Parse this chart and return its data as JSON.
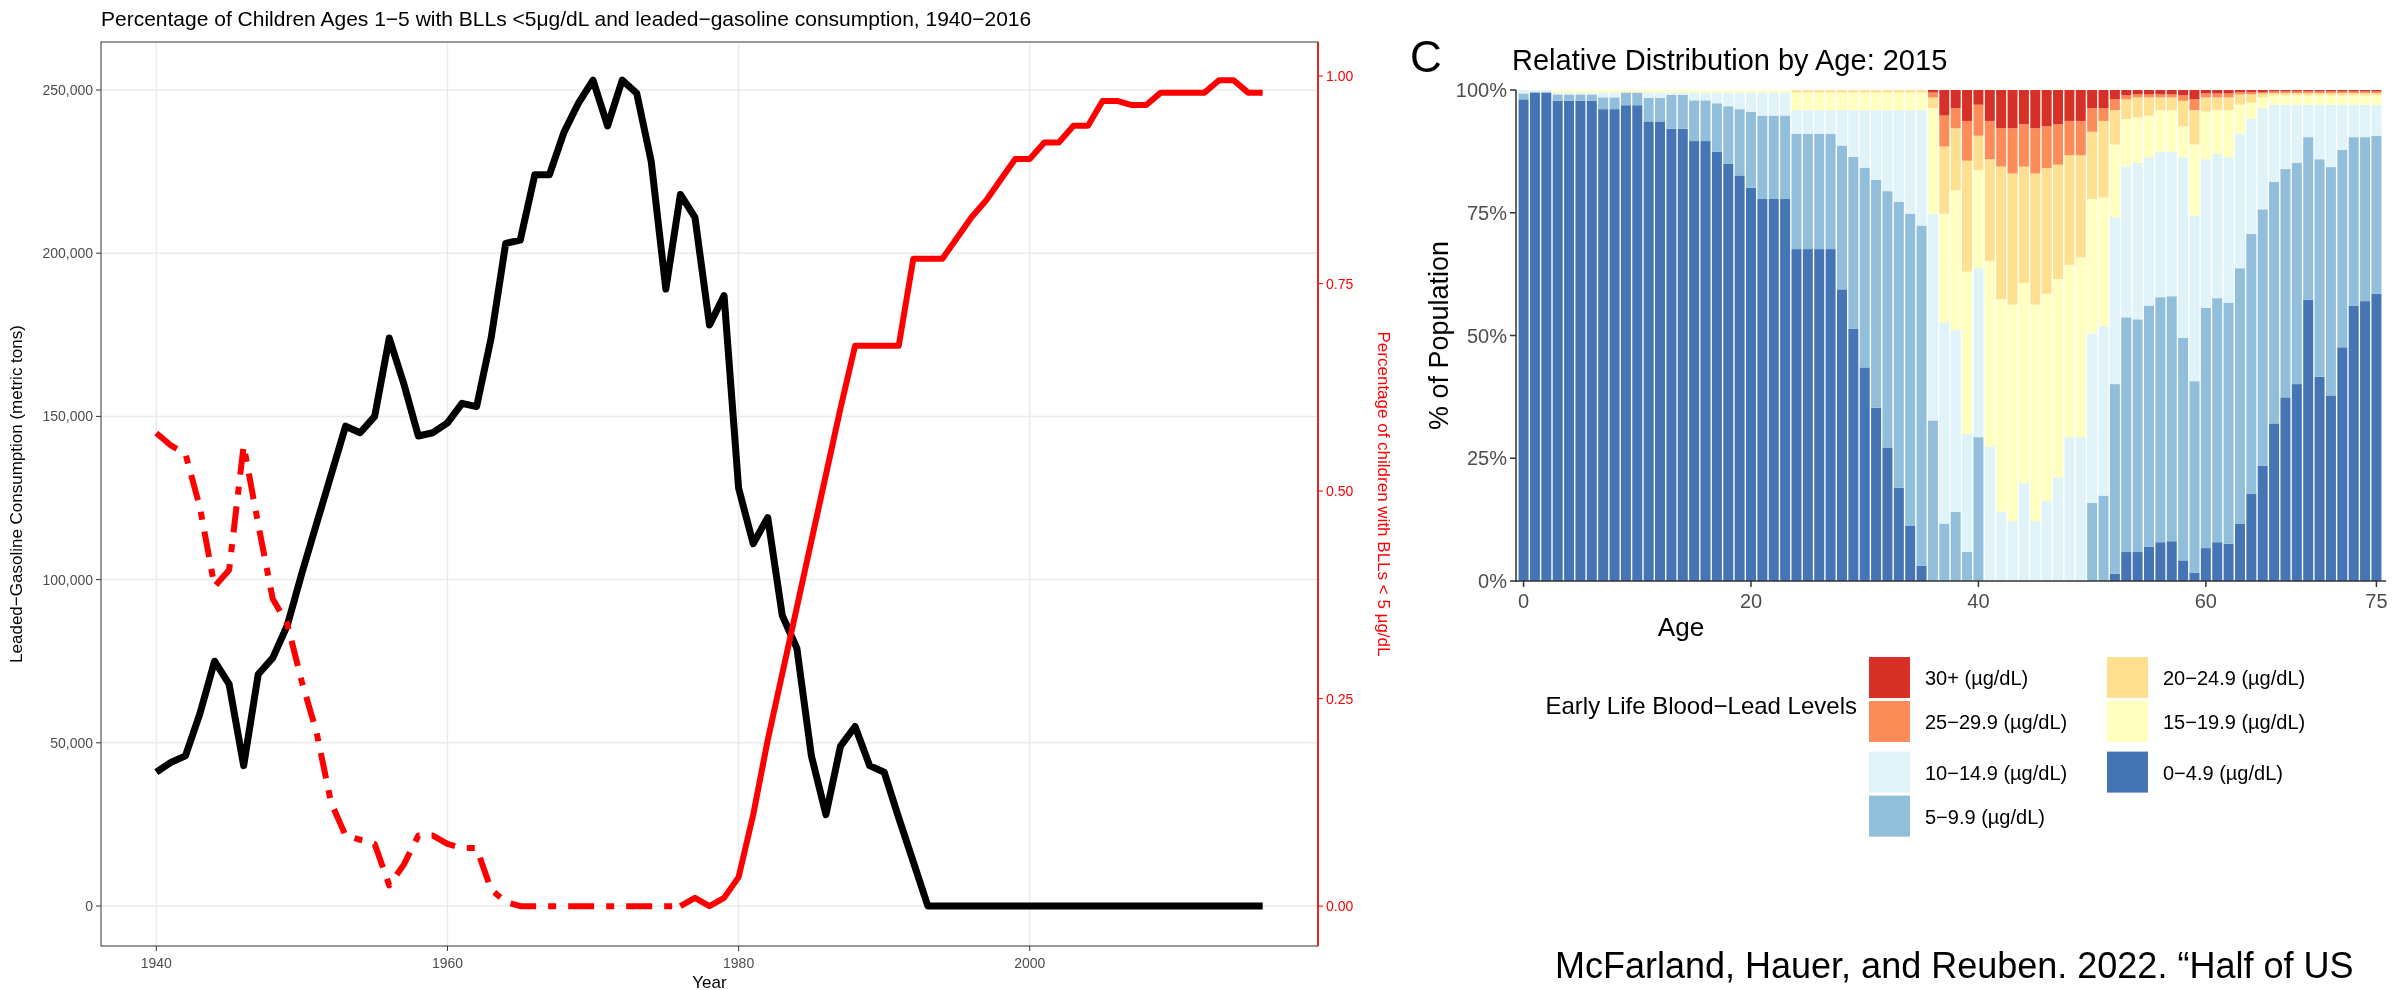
{
  "chart_data": [
    {
      "type": "line",
      "title": "Percentage of Children Ages 1−5 with BLLs <5μg/dL and leaded−gasoline consumption, 1940−2016",
      "xlabel": "Year",
      "ylabel": "Leaded−Gasoline Consumption (metric tons)",
      "y2label": "Percentage of children with BLLs < 5 μg/dL",
      "xlim": [
        1936.2,
        2019.8
      ],
      "xticks": [
        1940,
        1960,
        1980,
        2000
      ],
      "ylim": [
        -12250,
        264700
      ],
      "yticks": [
        0,
        {
          "value": 50000,
          "label": "50,000"
        },
        {
          "value": 100000,
          "label": "100,000"
        },
        {
          "value": 150000,
          "label": "150,000"
        },
        {
          "value": 200000,
          "label": "200,000"
        },
        {
          "value": 250000,
          "label": "250,000"
        }
      ],
      "y2lim": [
        -0.048,
        1.041
      ],
      "y2ticks": [
        {
          "value": 0,
          "label": "0.00"
        },
        {
          "value": 0.25,
          "label": "0.25"
        },
        {
          "value": 0.5,
          "label": "0.50"
        },
        {
          "value": 0.75,
          "label": "0.75"
        },
        {
          "value": 1,
          "label": "1.00"
        }
      ],
      "grid": true,
      "series": [
        {
          "color": "#000000",
          "x": [
            1940,
            1941,
            1942,
            1943,
            1944,
            1945,
            1946,
            1947,
            1948,
            1949,
            1950,
            1951,
            1952,
            1953,
            1954,
            1955,
            1956,
            1957,
            1958,
            1959,
            1960,
            1961,
            1962,
            1963,
            1964,
            1965,
            1966,
            1967,
            1968,
            1969,
            1970,
            1971,
            1972,
            1973,
            1974,
            1975,
            1976,
            1977,
            1978,
            1979,
            1980,
            1981,
            1982,
            1983,
            1984,
            1985,
            1986,
            1987,
            1988,
            1989,
            1990,
            1991,
            1992,
            1993,
            1994,
            1995,
            1996,
            1997,
            1998,
            1999,
            2000,
            2001,
            2002,
            2003,
            2004,
            2005,
            2006,
            2007,
            2008,
            2009,
            2010,
            2011,
            2012,
            2013,
            2014,
            2015,
            2016
          ],
          "values": [
            41000,
            44000,
            46000,
            59000,
            75000,
            68000,
            43000,
            71000,
            76000,
            86000,
            102000,
            117000,
            132000,
            147000,
            145000,
            150000,
            174000,
            160000,
            144000,
            145000,
            148000,
            154000,
            153000,
            174000,
            203000,
            204000,
            224000,
            224000,
            237000,
            246000,
            253000,
            239000,
            253000,
            249000,
            228000,
            189000,
            218000,
            211000,
            178000,
            187000,
            128000,
            111000,
            119000,
            89000,
            79000,
            46000,
            28000,
            49000,
            55000,
            43000,
            41000,
            27000,
            13500,
            0,
            0,
            0,
            0,
            0,
            0,
            0,
            0,
            0,
            0,
            0,
            0,
            0,
            0,
            0,
            0,
            0,
            0,
            0,
            0,
            0,
            0,
            0,
            0
          ]
        },
        {
          "color": "#ff0000",
          "axis": "y2",
          "line_style": "dashed",
          "x": [
            1940,
            1941,
            1942,
            1943,
            1944,
            1945,
            1946,
            1947,
            1948,
            1949,
            1950,
            1951,
            1952,
            1953,
            1954,
            1955,
            1956,
            1957,
            1958,
            1959,
            1960,
            1961,
            1962,
            1963,
            1964,
            1965,
            1966,
            1967,
            1968,
            1969,
            1970,
            1971,
            1972,
            1973,
            1974,
            1975,
            1976
          ],
          "values": [
            0.57,
            0.555,
            0.545,
            0.48,
            0.385,
            0.405,
            0.555,
            0.46,
            0.37,
            0.34,
            0.27,
            0.21,
            0.125,
            0.085,
            0.08,
            0.075,
            0.025,
            0.05,
            0.085,
            0.085,
            0.075,
            0.07,
            0.07,
            0.02,
            0.005,
            0,
            0,
            0,
            0,
            0,
            0,
            0,
            0,
            0,
            0,
            0,
            0
          ]
        },
        {
          "color": "#ff0000",
          "axis": "y2",
          "line_style": "solid",
          "x": [
            1976,
            1977,
            1978,
            1979,
            1980,
            1981,
            1982,
            1983,
            1984,
            1985,
            1986,
            1987,
            1988,
            1989,
            1990,
            1991,
            1992,
            1993,
            1994,
            1995,
            1996,
            1997,
            1998,
            1999,
            2000,
            2001,
            2002,
            2003,
            2004,
            2005,
            2006,
            2007,
            2008,
            2009,
            2010,
            2011,
            2012,
            2013,
            2014,
            2015,
            2016
          ],
          "values": [
            0,
            0.01,
            0,
            0.01,
            0.035,
            0.11,
            0.2,
            0.28,
            0.36,
            0.44,
            0.52,
            0.6,
            0.675,
            0.675,
            0.675,
            0.675,
            0.78,
            0.78,
            0.78,
            0.805,
            0.83,
            0.85,
            0.875,
            0.9,
            0.9,
            0.92,
            0.92,
            0.94,
            0.94,
            0.97,
            0.97,
            0.965,
            0.965,
            0.98,
            0.98,
            0.98,
            0.98,
            0.995,
            0.995,
            0.98,
            0.98
          ]
        }
      ]
    },
    {
      "type": "bar",
      "stacked": true,
      "title": "Relative Distribution by Age: 2015",
      "xlabel": "Age",
      "ylabel": "% of Population",
      "legend_title": "Early Life Blood−Lead Levels",
      "legend": "bottom",
      "annotations": [
        "C",
        "McFarland, Hauer, and Reuben. 2022. “Half of US"
      ],
      "ylim": [
        0,
        100
      ],
      "yticks": [
        {
          "value": 0,
          "label": "0%"
        },
        {
          "value": 25,
          "label": "25%"
        },
        {
          "value": 50,
          "label": "50%"
        },
        {
          "value": 75,
          "label": "75%"
        },
        {
          "value": 100,
          "label": "100%"
        }
      ],
      "categories": [
        "0",
        null,
        null,
        null,
        null,
        null,
        null,
        null,
        null,
        null,
        null,
        null,
        null,
        null,
        null,
        null,
        null,
        null,
        null,
        null,
        "20",
        null,
        null,
        null,
        null,
        null,
        null,
        null,
        null,
        null,
        null,
        null,
        null,
        null,
        null,
        null,
        null,
        null,
        null,
        null,
        "40",
        null,
        null,
        null,
        null,
        null,
        null,
        null,
        null,
        null,
        null,
        null,
        null,
        null,
        null,
        null,
        null,
        null,
        null,
        null,
        "60",
        null,
        null,
        null,
        null,
        null,
        null,
        null,
        null,
        null,
        null,
        null,
        null,
        null,
        null,
        "75"
      ],
      "series": [
        {
          "name": "0−4.9 (µg/dL)",
          "color": "#4575b4",
          "values": [
            98.1,
            99.4,
            99.4,
            97.8,
            97.8,
            97.8,
            97.8,
            96.1,
            96.1,
            96.9,
            96.9,
            93.6,
            93.6,
            92.1,
            92.1,
            89.6,
            89.6,
            87.4,
            85.0,
            82.6,
            80.1,
            77.8,
            77.8,
            77.8,
            67.6,
            67.6,
            67.6,
            67.6,
            59.4,
            51.4,
            43.5,
            35.3,
            27.2,
            19.0,
            11.3,
            3.1,
            0,
            0,
            0,
            0,
            0,
            0,
            0,
            0,
            0,
            0,
            0,
            0,
            0,
            0,
            0,
            0,
            1.5,
            5.9,
            5.9,
            7.0,
            7.9,
            8.1,
            4.2,
            1.7,
            6.7,
            7.9,
            7.6,
            11.7,
            17.8,
            23.5,
            32.1,
            37.4,
            40.1,
            57.3,
            41.6,
            37.8,
            47.6,
            56.1,
            57.0,
            58.5
          ]
        },
        {
          "name": "5−9.9 (µg/dL)",
          "color": "#91bfdb",
          "values": [
            1.2,
            0.2,
            0.2,
            1.3,
            1.3,
            1.3,
            1.3,
            2.4,
            2.4,
            2.6,
            2.6,
            4.8,
            4.8,
            6.9,
            6.9,
            8.3,
            8.3,
            9.9,
            11.7,
            13.5,
            15.5,
            17.0,
            17.0,
            17.0,
            23.5,
            23.5,
            23.5,
            23.5,
            29.3,
            35.0,
            40.7,
            46.4,
            52.2,
            58.2,
            63.5,
            69.3,
            32.7,
            11.7,
            14.1,
            5.9,
            29.3,
            0,
            0,
            0,
            0,
            0,
            0,
            0,
            0,
            0,
            15.9,
            17.4,
            38.6,
            47.8,
            47.4,
            49.1,
            49.9,
            49.9,
            45.3,
            39.0,
            48.9,
            49.7,
            49.1,
            52.0,
            52.9,
            52.2,
            49.2,
            46.5,
            45.1,
            33.1,
            44.3,
            46.5,
            40.2,
            34.3,
            33.4,
            32.2
          ]
        },
        {
          "name": "10−14.9 (µg/dL)",
          "color": "#e0f3f8",
          "values": [
            0.7,
            0.4,
            0.4,
            0.4,
            0.4,
            0.4,
            0.4,
            1.0,
            1.0,
            0,
            0,
            1.1,
            1.1,
            0.5,
            0.5,
            1.6,
            1.6,
            2.2,
            2.8,
            3.4,
            3.9,
            4.7,
            4.7,
            4.7,
            4.8,
            4.8,
            4.8,
            4.8,
            7.2,
            9.5,
            11.7,
            14.2,
            16.5,
            18.7,
            21.1,
            23.5,
            42.1,
            40.9,
            37.0,
            24.1,
            34.4,
            27.4,
            14.1,
            12.2,
            20.0,
            12.2,
            16.3,
            21.1,
            29.3,
            29.3,
            34.5,
            34.5,
            34.0,
            30.7,
            31.9,
            30.2,
            29.6,
            29.4,
            36.8,
            33.7,
            30.3,
            29.4,
            29.6,
            27.4,
            23.4,
            20.6,
            15.7,
            13.1,
            11.8,
            6.6,
            11.1,
            12.7,
            9.2,
            6.6,
            6.6,
            6.3
          ]
        },
        {
          "name": "15−19.9 (µg/dL)",
          "color": "#ffffbf",
          "values": [
            0,
            0,
            0,
            0.5,
            0.5,
            0.5,
            0.5,
            0.5,
            0.5,
            0.5,
            0.5,
            0.5,
            0.5,
            0.5,
            0.5,
            0.5,
            0.5,
            0.5,
            0.5,
            0.5,
            0.5,
            0.5,
            0.5,
            0.5,
            3.6,
            3.6,
            3.6,
            3.6,
            3.6,
            3.6,
            3.6,
            3.6,
            3.6,
            3.6,
            3.6,
            3.6,
            21.5,
            22.2,
            28.5,
            33.0,
            20.0,
            37.8,
            43.3,
            44.1,
            40.7,
            44.1,
            42.2,
            40.4,
            35.1,
            36.6,
            27.4,
            26.2,
            14.8,
            9.7,
            9.2,
            8.5,
            8.5,
            8.5,
            6.3,
            14.5,
            9.7,
            8.9,
            9.6,
            5.9,
            3.3,
            2.2,
            1.9,
            1.9,
            1.9,
            1.9,
            1.9,
            1.9,
            1.9,
            1.9,
            1.9,
            1.9
          ]
        },
        {
          "name": "20−24.9 (µg/dL)",
          "color": "#fee090",
          "values": [
            0,
            0,
            0,
            0,
            0,
            0,
            0,
            0,
            0,
            0,
            0,
            0,
            0,
            0,
            0,
            0,
            0,
            0,
            0,
            0,
            0,
            0,
            0,
            0,
            0.5,
            0.5,
            0.5,
            0.5,
            0.5,
            0.5,
            0.5,
            0.5,
            0.5,
            0.5,
            0.5,
            0.5,
            2.2,
            13.7,
            12.6,
            22.6,
            7.0,
            20.7,
            27.0,
            26.7,
            23.7,
            26.7,
            25.6,
            23.3,
            22.3,
            20.8,
            13.7,
            15.6,
            7.0,
            4.0,
            4.1,
            3.7,
            2.6,
            2.6,
            5.2,
            7.0,
            2.9,
            2.6,
            2.6,
            2.1,
            1.7,
            0.8,
            0.5,
            0.5,
            0.5,
            0.5,
            0.5,
            0.5,
            0.5,
            0.5,
            0.5,
            0.5
          ]
        },
        {
          "name": "25−29.9 (µg/dL)",
          "color": "#fc8d59",
          "values": [
            0,
            0,
            0,
            0,
            0,
            0,
            0,
            0,
            0,
            0,
            0,
            0,
            0,
            0,
            0,
            0,
            0,
            0,
            0,
            0,
            0,
            0,
            0,
            0,
            0,
            0,
            0,
            0,
            0,
            0,
            0,
            0,
            0,
            0,
            0,
            0,
            1.0,
            6.3,
            4.1,
            8.1,
            6.3,
            7.8,
            7.8,
            9.2,
            8.6,
            9.2,
            8.5,
            8.2,
            7.0,
            7.0,
            4.8,
            2.6,
            2.2,
            0.8,
            0.6,
            0.6,
            0.6,
            0.6,
            1.1,
            2.2,
            0.8,
            0.8,
            0.8,
            0.5,
            0.5,
            0.3,
            0.3,
            0.3,
            0.3,
            0.3,
            0.3,
            0.3,
            0.3,
            0.3,
            0.3,
            0.3
          ]
        },
        {
          "name": "30+ (µg/dL)",
          "color": "#d73027",
          "values": [
            0,
            0,
            0,
            0,
            0,
            0,
            0,
            0,
            0,
            0,
            0,
            0,
            0,
            0,
            0,
            0,
            0,
            0,
            0,
            0,
            0,
            0,
            0,
            0,
            0,
            0,
            0,
            0,
            0,
            0,
            0,
            0,
            0,
            0,
            0,
            0,
            0.5,
            5.2,
            3.7,
            6.3,
            3.0,
            6.3,
            7.8,
            7.8,
            7.0,
            7.8,
            7.4,
            7.0,
            6.3,
            6.3,
            3.7,
            3.7,
            1.9,
            1.1,
            0.9,
            0.9,
            0.9,
            0.9,
            1.1,
            1.9,
            0.7,
            0.7,
            0.7,
            0.4,
            0.4,
            0.4,
            0.3,
            0.3,
            0.3,
            0.3,
            0.3,
            0.3,
            0.3,
            0.3,
            0.3,
            0.3
          ]
        }
      ]
    }
  ]
}
